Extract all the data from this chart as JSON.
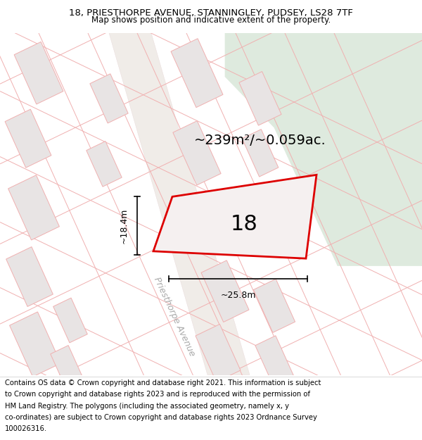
{
  "title_line1": "18, PRIESTHORPE AVENUE, STANNINGLEY, PUDSEY, LS28 7TF",
  "title_line2": "Map shows position and indicative extent of the property.",
  "area_label": "~239m²/~0.059ac.",
  "plot_number": "18",
  "dim_height": "~18.4m",
  "dim_width": "~25.8m",
  "street_name": "Priesthorpe Avenue",
  "map_bg": "#f7f4f4",
  "road_color": "#ffffff",
  "green_fill": "#deeade",
  "plot_stroke": "#dd0000",
  "plot_fill": "#f7f4f4",
  "building_fill": "#e8e4e4",
  "building_stroke": "#f0b0b0",
  "road_line_color": "#f0b0b0",
  "footer_lines": [
    "Contains OS data © Crown copyright and database right 2021. This information is subject",
    "to Crown copyright and database rights 2023 and is reproduced with the permission of",
    "HM Land Registry. The polygons (including the associated geometry, namely x, y",
    "co-ordinates) are subject to Crown copyright and database rights 2023 Ordnance Survey",
    "100026316."
  ],
  "title_fontsize": 9.5,
  "subtitle_fontsize": 8.5,
  "footer_fontsize": 7.2,
  "area_fontsize": 14,
  "number_fontsize": 22,
  "dim_fontsize": 9,
  "street_fontsize": 9
}
